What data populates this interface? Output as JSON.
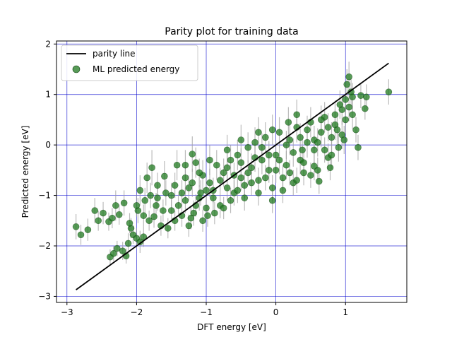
{
  "chart_data": {
    "type": "scatter",
    "title": "Parity plot for training data",
    "xlabel": "DFT energy [eV]",
    "ylabel": "Predicted energy [eV]",
    "xlim": [
      -3.15,
      1.88
    ],
    "ylim": [
      -3.12,
      2.06
    ],
    "xticks": [
      -3,
      -2,
      -1,
      0,
      1
    ],
    "yticks": [
      -3,
      -2,
      -1,
      0,
      1,
      2
    ],
    "grid": true,
    "legend_position": "top-left",
    "colors": {
      "parity_line": "#000000",
      "points": "#1f7a1f",
      "point_edge": "#0b3d0b",
      "error_bars": "#9e9e9e",
      "grid": "#0000cc"
    },
    "series": [
      {
        "name": "parity line",
        "kind": "line",
        "x": [
          -2.87,
          1.62
        ],
        "y": [
          -2.87,
          1.62
        ]
      },
      {
        "name": "ML predicted energy",
        "kind": "scatter",
        "points": [
          [
            -2.87,
            -1.62,
            0.25
          ],
          [
            -2.8,
            -1.78,
            0.2
          ],
          [
            -2.7,
            -1.68,
            0.22
          ],
          [
            -2.6,
            -1.3,
            0.25
          ],
          [
            -2.55,
            -1.5,
            0.2
          ],
          [
            -2.48,
            -1.35,
            0.22
          ],
          [
            -2.4,
            -1.52,
            0.18
          ],
          [
            -2.35,
            -1.45,
            0.2
          ],
          [
            -2.3,
            -1.2,
            0.3
          ],
          [
            -2.25,
            -1.38,
            0.2
          ],
          [
            -2.38,
            -2.22,
            0.15
          ],
          [
            -2.33,
            -2.15,
            0.15
          ],
          [
            -2.28,
            -2.05,
            0.15
          ],
          [
            -2.2,
            -2.1,
            0.18
          ],
          [
            -2.15,
            -2.2,
            0.15
          ],
          [
            -2.12,
            -1.95,
            0.2
          ],
          [
            -2.18,
            -1.15,
            0.25
          ],
          [
            -2.08,
            -1.65,
            0.2
          ],
          [
            -2.05,
            -1.78,
            0.18
          ],
          [
            -2.0,
            -1.85,
            0.2
          ],
          [
            -1.95,
            -1.92,
            0.22
          ],
          [
            -1.9,
            -1.82,
            0.2
          ],
          [
            -2.1,
            -1.55,
            0.2
          ],
          [
            -1.98,
            -1.3,
            0.25
          ],
          [
            -1.95,
            -0.9,
            0.3
          ],
          [
            -1.88,
            -1.1,
            0.25
          ],
          [
            -1.85,
            -0.65,
            0.3
          ],
          [
            -1.78,
            -0.45,
            0.35
          ],
          [
            -1.82,
            -1.5,
            0.2
          ],
          [
            -1.75,
            -1.42,
            0.22
          ],
          [
            -1.72,
            -1.2,
            0.25
          ],
          [
            -1.7,
            -1.05,
            0.25
          ],
          [
            -1.65,
            -1.6,
            0.2
          ],
          [
            -1.6,
            -0.62,
            0.3
          ],
          [
            -1.55,
            -1.65,
            0.2
          ],
          [
            -1.5,
            -1.3,
            0.22
          ],
          [
            -1.45,
            -1.5,
            0.2
          ],
          [
            -1.42,
            -0.4,
            0.3
          ],
          [
            -1.35,
            -0.95,
            0.25
          ],
          [
            -1.3,
            -1.1,
            0.25
          ],
          [
            -1.25,
            -1.6,
            0.22
          ],
          [
            -1.2,
            -0.18,
            0.35
          ],
          [
            -1.15,
            -0.35,
            0.3
          ],
          [
            -1.18,
            -1.35,
            0.25
          ],
          [
            -1.1,
            -1.05,
            0.25
          ],
          [
            -1.05,
            -0.6,
            0.3
          ],
          [
            -1.0,
            -1.25,
            0.22
          ],
          [
            -0.95,
            -0.75,
            0.28
          ],
          [
            -0.9,
            -0.9,
            0.25
          ],
          [
            -0.85,
            -0.4,
            0.3
          ],
          [
            -0.8,
            -1.2,
            0.25
          ],
          [
            -0.75,
            -0.55,
            0.28
          ],
          [
            -0.7,
            -0.85,
            0.25
          ],
          [
            -0.65,
            -0.3,
            0.3
          ],
          [
            -0.6,
            -0.95,
            0.25
          ],
          [
            -0.55,
            -0.2,
            0.3
          ],
          [
            -0.5,
            -0.65,
            0.25
          ],
          [
            -0.45,
            -0.8,
            0.25
          ],
          [
            -0.4,
            -0.05,
            0.3
          ],
          [
            -0.35,
            -0.45,
            0.28
          ],
          [
            -0.3,
            0.05,
            0.3
          ],
          [
            -0.25,
            -0.7,
            0.25
          ],
          [
            -0.2,
            -0.3,
            0.28
          ],
          [
            -0.15,
            0.15,
            0.3
          ],
          [
            -0.1,
            -0.5,
            0.25
          ],
          [
            -0.05,
            -0.85,
            0.25
          ],
          [
            0.0,
            -0.2,
            0.28
          ],
          [
            0.05,
            0.25,
            0.3
          ],
          [
            0.1,
            -0.65,
            0.25
          ],
          [
            0.15,
            -0.4,
            0.28
          ],
          [
            0.2,
            0.1,
            0.3
          ],
          [
            0.25,
            -0.75,
            0.25
          ],
          [
            0.3,
            0.35,
            0.3
          ],
          [
            0.35,
            -0.3,
            0.28
          ],
          [
            0.4,
            -0.55,
            0.25
          ],
          [
            0.45,
            0.05,
            0.3
          ],
          [
            0.5,
            0.45,
            0.3
          ],
          [
            0.55,
            -0.1,
            0.28
          ],
          [
            0.6,
            -0.5,
            0.25
          ],
          [
            0.65,
            0.25,
            0.3
          ],
          [
            0.7,
            0.55,
            0.3
          ],
          [
            0.75,
            -0.25,
            0.28
          ],
          [
            0.8,
            0.15,
            0.3
          ],
          [
            0.85,
            0.4,
            0.3
          ],
          [
            0.9,
            -0.05,
            0.28
          ],
          [
            0.95,
            0.7,
            0.3
          ],
          [
            1.0,
            0.9,
            0.3
          ],
          [
            1.02,
            1.2,
            0.3
          ],
          [
            1.05,
            1.35,
            0.3
          ],
          [
            1.08,
            1.05,
            0.28
          ],
          [
            1.1,
            0.6,
            0.28
          ],
          [
            1.15,
            0.3,
            0.25
          ],
          [
            1.18,
            -0.05,
            0.25
          ],
          [
            1.22,
            0.98,
            0.25
          ],
          [
            1.28,
            0.72,
            0.22
          ],
          [
            1.3,
            0.95,
            0.25
          ],
          [
            1.62,
            1.05,
            0.25
          ],
          [
            0.4,
            -0.35,
            0.28
          ],
          [
            0.55,
            -0.42,
            0.28
          ],
          [
            0.62,
            -0.72,
            0.25
          ],
          [
            0.78,
            -0.45,
            0.25
          ],
          [
            0.7,
            -0.1,
            0.25
          ],
          [
            0.88,
            0.3,
            0.28
          ],
          [
            0.95,
            0.2,
            0.28
          ],
          [
            0.18,
            0.45,
            0.3
          ],
          [
            0.3,
            0.6,
            0.3
          ],
          [
            -0.05,
            0.3,
            0.3
          ],
          [
            -0.25,
            0.25,
            0.3
          ],
          [
            -0.5,
            0.1,
            0.3
          ],
          [
            -0.7,
            -0.1,
            0.3
          ],
          [
            -0.95,
            -0.3,
            0.3
          ],
          [
            -1.1,
            -0.55,
            0.28
          ],
          [
            -1.3,
            -0.65,
            0.28
          ],
          [
            -1.45,
            -0.8,
            0.25
          ],
          [
            -1.58,
            -0.95,
            0.25
          ],
          [
            -1.4,
            -1.2,
            0.22
          ],
          [
            -1.22,
            -1.45,
            0.22
          ],
          [
            -1.05,
            -1.5,
            0.22
          ],
          [
            -0.88,
            -1.35,
            0.22
          ],
          [
            -0.65,
            -1.1,
            0.25
          ],
          [
            -0.45,
            -1.05,
            0.25
          ],
          [
            -0.25,
            -0.95,
            0.25
          ],
          [
            -0.05,
            -1.1,
            0.25
          ],
          [
            0.1,
            -0.9,
            0.25
          ],
          [
            0.3,
            -0.7,
            0.25
          ],
          [
            0.5,
            -0.6,
            0.25
          ],
          [
            -1.62,
            -1.3,
            0.22
          ],
          [
            -1.5,
            -1.0,
            0.25
          ],
          [
            -1.35,
            -1.4,
            0.22
          ],
          [
            -1.25,
            -0.85,
            0.25
          ],
          [
            -1.15,
            -1.2,
            0.22
          ],
          [
            -1.0,
            -0.9,
            0.25
          ],
          [
            -0.9,
            -1.05,
            0.25
          ],
          [
            -0.8,
            -0.7,
            0.25
          ],
          [
            -0.7,
            -0.45,
            0.28
          ],
          [
            -0.6,
            -0.6,
            0.25
          ],
          [
            -0.5,
            -0.35,
            0.28
          ],
          [
            -0.4,
            -0.55,
            0.25
          ],
          [
            -0.3,
            -0.25,
            0.28
          ],
          [
            -0.2,
            -0.05,
            0.28
          ],
          [
            -0.1,
            -0.2,
            0.28
          ],
          [
            0.05,
            -0.3,
            0.28
          ],
          [
            0.15,
            0.0,
            0.28
          ],
          [
            0.25,
            -0.15,
            0.28
          ],
          [
            0.35,
            0.15,
            0.28
          ],
          [
            0.45,
            0.3,
            0.28
          ],
          [
            0.55,
            0.1,
            0.28
          ],
          [
            0.65,
            0.5,
            0.28
          ],
          [
            0.75,
            0.35,
            0.28
          ],
          [
            0.85,
            0.6,
            0.28
          ],
          [
            0.92,
            0.8,
            0.28
          ],
          [
            1.0,
            0.5,
            0.28
          ],
          [
            1.05,
            0.75,
            0.28
          ],
          [
            1.1,
            0.95,
            0.28
          ],
          [
            -1.7,
            -0.8,
            0.25
          ],
          [
            -1.8,
            -1.0,
            0.25
          ],
          [
            -1.9,
            -1.4,
            0.22
          ],
          [
            -2.0,
            -1.2,
            0.22
          ],
          [
            -1.3,
            -0.4,
            0.3
          ],
          [
            -1.2,
            -0.75,
            0.28
          ],
          [
            -1.08,
            -0.95,
            0.25
          ],
          [
            -0.98,
            -1.4,
            0.22
          ],
          [
            -0.75,
            -1.25,
            0.22
          ],
          [
            -0.55,
            -0.9,
            0.25
          ],
          [
            -0.35,
            -0.75,
            0.25
          ],
          [
            -0.15,
            -0.65,
            0.25
          ],
          [
            0.0,
            -0.5,
            0.25
          ],
          [
            0.2,
            -0.55,
            0.25
          ],
          [
            0.38,
            -0.1,
            0.28
          ],
          [
            0.6,
            0.05,
            0.28
          ],
          [
            0.8,
            -0.2,
            0.28
          ],
          [
            0.98,
            0.1,
            0.28
          ]
        ]
      }
    ]
  }
}
